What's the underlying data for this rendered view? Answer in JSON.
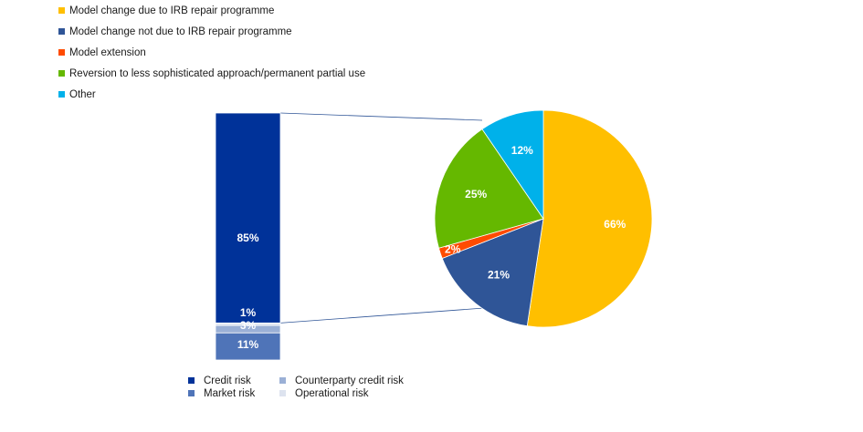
{
  "chart_data": [
    {
      "type": "pie",
      "series": [
        {
          "name": "Model change due to IRB repair programme",
          "value": 66,
          "label": "66%",
          "color": "#ffbf00"
        },
        {
          "name": "Model change not due to IRB repair programme",
          "value": 21,
          "label": "21%",
          "color": "#2f5597"
        },
        {
          "name": "Model extension",
          "value": 2,
          "label": "2%",
          "color": "#ff4b00"
        },
        {
          "name": "Reversion to less sophisticated approach/permanent partial use",
          "value": 25,
          "label": "25%",
          "color": "#65b800"
        },
        {
          "name": "Other",
          "value": 12,
          "label": "12%",
          "color": "#00b1ea"
        }
      ],
      "legend_position": "top-left"
    },
    {
      "type": "bar",
      "stacked": true,
      "series": [
        {
          "name": "Market risk",
          "value": 11,
          "label": "11%",
          "color": "#4f74b8"
        },
        {
          "name": "Counterparty credit risk",
          "value": 3,
          "label": "3%",
          "color": "#9bb0d6"
        },
        {
          "name": "Operational risk",
          "value": 1,
          "label": "1%",
          "color": "#dde3ef"
        },
        {
          "name": "Credit risk",
          "value": 85,
          "label": "85%",
          "color": "#003299"
        }
      ],
      "legend_position": "bottom"
    }
  ]
}
